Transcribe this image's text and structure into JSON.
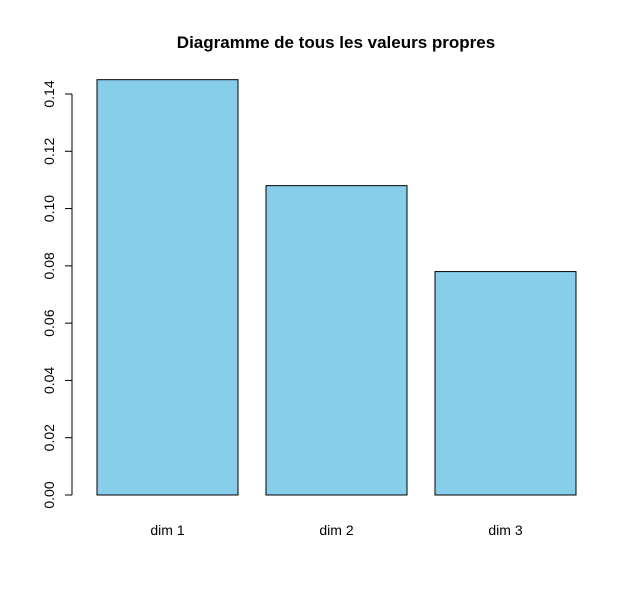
{
  "chart_data": {
    "type": "bar",
    "title": "Diagramme de tous les valeurs propres",
    "categories": [
      "dim 1",
      "dim 2",
      "dim 3"
    ],
    "values": [
      0.145,
      0.108,
      0.078
    ],
    "xlabel": "",
    "ylabel": "",
    "ylim": [
      0,
      0.14
    ],
    "yticks": [
      0.0,
      0.02,
      0.04,
      0.06,
      0.08,
      0.1,
      0.12,
      0.14
    ],
    "ytick_labels": [
      "0.00",
      "0.02",
      "0.04",
      "0.06",
      "0.08",
      "0.10",
      "0.12",
      "0.14"
    ],
    "grid": false,
    "legend": "none",
    "bar_color": "#87ceeb",
    "bar_border_color": "#000000"
  }
}
